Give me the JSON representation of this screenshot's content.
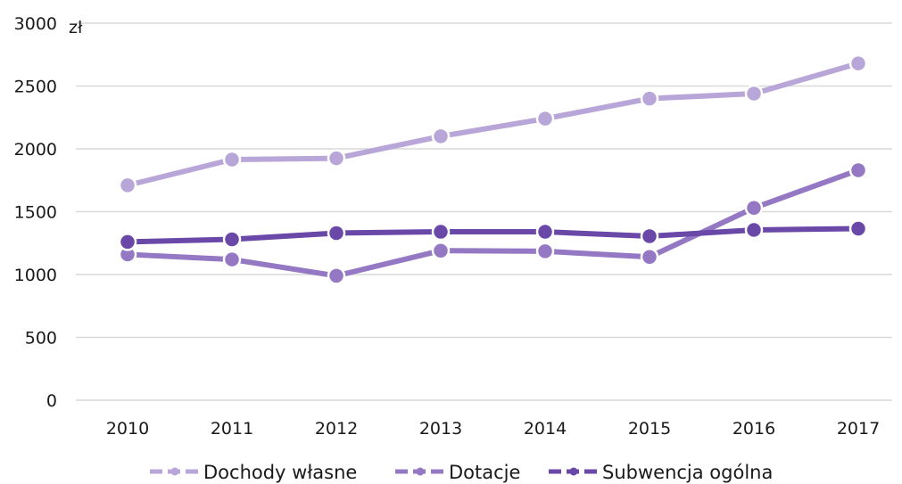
{
  "chart_data": {
    "type": "line",
    "title": "",
    "xlabel": "",
    "ylabel": "",
    "y_unit": "zł",
    "ylim": [
      0,
      3000
    ],
    "y_ticks": [
      0,
      500,
      1000,
      1500,
      2000,
      2500,
      3000
    ],
    "categories": [
      "2010",
      "2011",
      "2012",
      "2013",
      "2014",
      "2015",
      "2016",
      "2017"
    ],
    "grid": true,
    "legend_position": "bottom",
    "series": [
      {
        "name": "Dochody własne",
        "color": "#b9a6d9",
        "values": [
          1710,
          1915,
          1925,
          2100,
          2240,
          2400,
          2440,
          2680
        ]
      },
      {
        "name": "Dotacje",
        "color": "#9478c4",
        "values": [
          1160,
          1120,
          990,
          1190,
          1185,
          1140,
          1530,
          1830
        ]
      },
      {
        "name": "Subwencja ogólna",
        "color": "#6a48a8",
        "values": [
          1260,
          1280,
          1330,
          1340,
          1340,
          1305,
          1355,
          1365
        ]
      }
    ]
  }
}
